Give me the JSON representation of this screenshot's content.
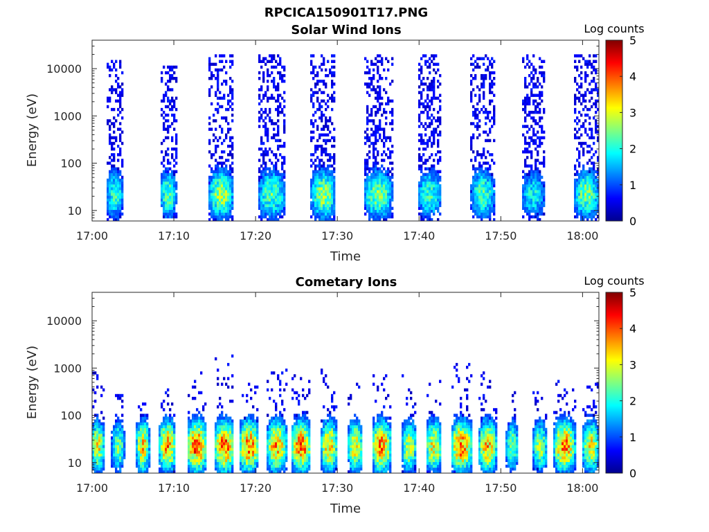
{
  "figure": {
    "title": "RPCICA150901T17.PNG"
  },
  "chart_data": [
    {
      "type": "heatmap",
      "title": "Solar Wind Ions",
      "xlabel": "Time",
      "ylabel": "Energy (eV)",
      "x_ticks": [
        "17:00",
        "17:10",
        "17:20",
        "17:30",
        "17:40",
        "17:50",
        "18:00"
      ],
      "x_range_minutes": [
        0,
        62
      ],
      "y_ticks": [
        10,
        100,
        1000,
        10000
      ],
      "y_tick_labels": [
        "10",
        "100",
        "1000",
        "10000"
      ],
      "y_range": [
        6,
        40000
      ],
      "y_scale": "log",
      "colorbar": {
        "label": "Log counts",
        "range": [
          0,
          5
        ],
        "ticks": [
          "0",
          "1",
          "2",
          "3",
          "4",
          "5"
        ],
        "colormap": "jet"
      },
      "bursts": [
        {
          "center_minute": 2.8,
          "width_minutes": 2.2,
          "max_energy_ev": 15000,
          "peak_log_counts": 2.2
        },
        {
          "center_minute": 9.3,
          "width_minutes": 2.0,
          "max_energy_ev": 12000,
          "peak_log_counts": 2.4
        },
        {
          "center_minute": 15.8,
          "width_minutes": 3.0,
          "max_energy_ev": 20000,
          "peak_log_counts": 2.8
        },
        {
          "center_minute": 22.0,
          "width_minutes": 3.5,
          "max_energy_ev": 20000,
          "peak_log_counts": 2.4
        },
        {
          "center_minute": 28.3,
          "width_minutes": 3.0,
          "max_energy_ev": 20000,
          "peak_log_counts": 2.8
        },
        {
          "center_minute": 35.0,
          "width_minutes": 3.5,
          "max_energy_ev": 20000,
          "peak_log_counts": 2.6
        },
        {
          "center_minute": 41.3,
          "width_minutes": 3.0,
          "max_energy_ev": 20000,
          "peak_log_counts": 2.2
        },
        {
          "center_minute": 47.8,
          "width_minutes": 3.0,
          "max_energy_ev": 20000,
          "peak_log_counts": 2.4
        },
        {
          "center_minute": 54.0,
          "width_minutes": 3.0,
          "max_energy_ev": 20000,
          "peak_log_counts": 2.0
        },
        {
          "center_minute": 60.5,
          "width_minutes": 3.0,
          "max_energy_ev": 20000,
          "peak_log_counts": 2.6
        }
      ]
    },
    {
      "type": "heatmap",
      "title": "Cometary Ions",
      "xlabel": "Time",
      "ylabel": "Energy (eV)",
      "x_ticks": [
        "17:00",
        "17:10",
        "17:20",
        "17:30",
        "17:40",
        "17:50",
        "18:00"
      ],
      "x_range_minutes": [
        0,
        62
      ],
      "y_ticks": [
        10,
        100,
        1000,
        10000
      ],
      "y_tick_labels": [
        "10",
        "100",
        "1000",
        "10000"
      ],
      "y_range": [
        6,
        40000
      ],
      "y_scale": "log",
      "colorbar": {
        "label": "Log counts",
        "range": [
          0,
          5
        ],
        "ticks": [
          "0",
          "1",
          "2",
          "3",
          "4",
          "5"
        ],
        "colormap": "jet"
      },
      "bursts": [
        {
          "center_minute": 0.7,
          "width_minutes": 1.6,
          "max_energy_ev": 900,
          "peak_log_counts": 3.2
        },
        {
          "center_minute": 3.2,
          "width_minutes": 1.6,
          "max_energy_ev": 300,
          "peak_log_counts": 2.6
        },
        {
          "center_minute": 6.2,
          "width_minutes": 1.6,
          "max_energy_ev": 200,
          "peak_log_counts": 3.4
        },
        {
          "center_minute": 9.2,
          "width_minutes": 2.0,
          "max_energy_ev": 600,
          "peak_log_counts": 3.8
        },
        {
          "center_minute": 12.8,
          "width_minutes": 2.4,
          "max_energy_ev": 1000,
          "peak_log_counts": 4.1
        },
        {
          "center_minute": 16.2,
          "width_minutes": 2.4,
          "max_energy_ev": 2000,
          "peak_log_counts": 4.0
        },
        {
          "center_minute": 19.2,
          "width_minutes": 2.4,
          "max_energy_ev": 900,
          "peak_log_counts": 3.9
        },
        {
          "center_minute": 22.6,
          "width_minutes": 2.4,
          "max_energy_ev": 1000,
          "peak_log_counts": 3.7
        },
        {
          "center_minute": 25.6,
          "width_minutes": 2.4,
          "max_energy_ev": 800,
          "peak_log_counts": 3.9
        },
        {
          "center_minute": 29.0,
          "width_minutes": 2.0,
          "max_energy_ev": 1000,
          "peak_log_counts": 3.5
        },
        {
          "center_minute": 32.2,
          "width_minutes": 1.8,
          "max_energy_ev": 800,
          "peak_log_counts": 3.3
        },
        {
          "center_minute": 35.4,
          "width_minutes": 2.4,
          "max_energy_ev": 700,
          "peak_log_counts": 3.8
        },
        {
          "center_minute": 38.8,
          "width_minutes": 1.8,
          "max_energy_ev": 800,
          "peak_log_counts": 3.0
        },
        {
          "center_minute": 41.8,
          "width_minutes": 2.0,
          "max_energy_ev": 600,
          "peak_log_counts": 3.3
        },
        {
          "center_minute": 45.2,
          "width_minutes": 2.6,
          "max_energy_ev": 1500,
          "peak_log_counts": 3.9
        },
        {
          "center_minute": 48.4,
          "width_minutes": 2.2,
          "max_energy_ev": 900,
          "peak_log_counts": 3.6
        },
        {
          "center_minute": 51.4,
          "width_minutes": 1.6,
          "max_energy_ev": 400,
          "peak_log_counts": 2.6
        },
        {
          "center_minute": 54.8,
          "width_minutes": 1.8,
          "max_energy_ev": 500,
          "peak_log_counts": 2.8
        },
        {
          "center_minute": 57.8,
          "width_minutes": 2.6,
          "max_energy_ev": 700,
          "peak_log_counts": 3.8
        },
        {
          "center_minute": 61.0,
          "width_minutes": 2.0,
          "max_energy_ev": 500,
          "peak_log_counts": 3.3
        }
      ]
    }
  ]
}
